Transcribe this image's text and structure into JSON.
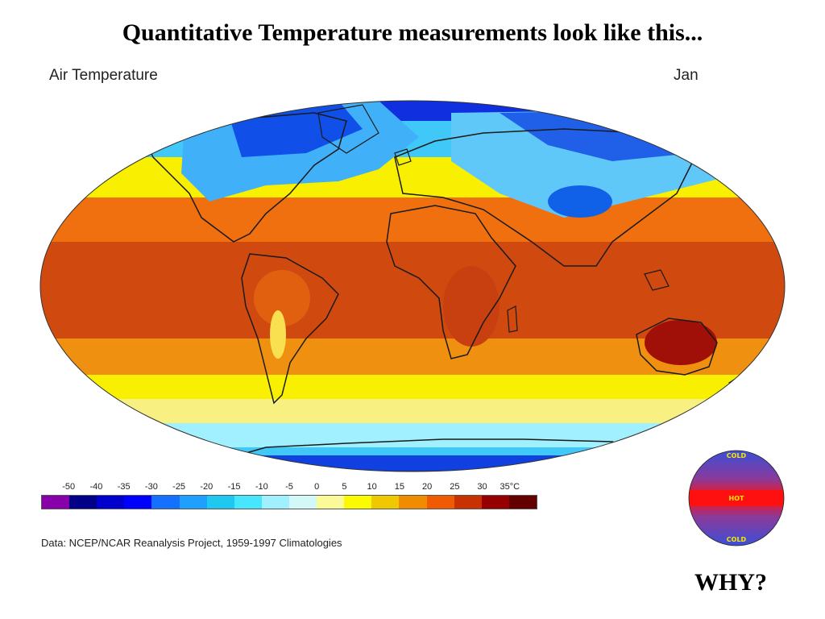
{
  "slide": {
    "title": "Quantitative Temperature measurements look like this...",
    "why_text": "WHY?"
  },
  "map": {
    "title": "Air Temperature",
    "month": "Jan",
    "source": "Data:  NCEP/NCAR Reanalysis Project, 1959-1997 Climatologies",
    "projection": "elliptical world map",
    "bands": [
      {
        "latitude_zone": "arctic",
        "color": "#1030e0"
      },
      {
        "latitude_zone": "subarctic",
        "color": "#40c8f8"
      },
      {
        "latitude_zone": "north-mid",
        "color": "#f8f000"
      },
      {
        "latitude_zone": "north-subtropic",
        "color": "#f07010"
      },
      {
        "latitude_zone": "tropics",
        "color": "#d04a10"
      },
      {
        "latitude_zone": "south-subtropic",
        "color": "#f09010"
      },
      {
        "latitude_zone": "south-mid",
        "color": "#f8f080"
      },
      {
        "latitude_zone": "antarctic",
        "color": "#1030e0"
      }
    ]
  },
  "legend": {
    "ticks": [
      "-50",
      "-40",
      "-35",
      "-30",
      "-25",
      "-20",
      "-15",
      "-10",
      "-5",
      "0",
      "5",
      "10",
      "15",
      "20",
      "25",
      "30",
      "35°C"
    ],
    "colors": [
      "#8800aa",
      "#000088",
      "#0000cc",
      "#0000ff",
      "#1470ff",
      "#1ea0ff",
      "#1ec8f0",
      "#46e6ff",
      "#a0f0ff",
      "#d2f8f8",
      "#fafa96",
      "#fafa00",
      "#f0c800",
      "#f08c00",
      "#f05a00",
      "#c83200",
      "#960000",
      "#640000"
    ]
  },
  "globe": {
    "top_label": "COLD",
    "middle_label": "HOT",
    "bottom_label": "COLD",
    "colors": {
      "cold": "#3b4fd8",
      "hot": "#ff1010",
      "label": "#f8e800"
    }
  }
}
